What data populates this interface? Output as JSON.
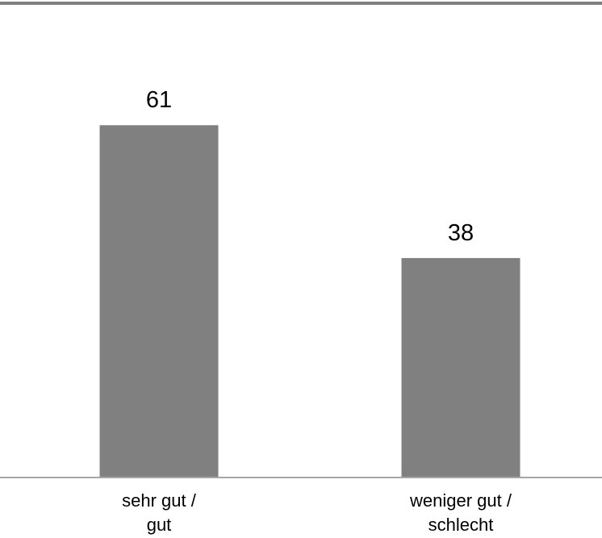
{
  "chart_data": {
    "type": "bar",
    "categories": [
      [
        "sehr gut /",
        "gut"
      ],
      [
        "weniger gut /",
        "schlecht"
      ]
    ],
    "values": [
      61,
      38
    ],
    "title": "",
    "xlabel": "",
    "ylabel": "",
    "ylim": [
      0,
      75
    ],
    "grid": false,
    "legend": "none",
    "bar_color": "#808080",
    "axis_color": "#a6a6a6",
    "top_rule_color": "#808080"
  }
}
